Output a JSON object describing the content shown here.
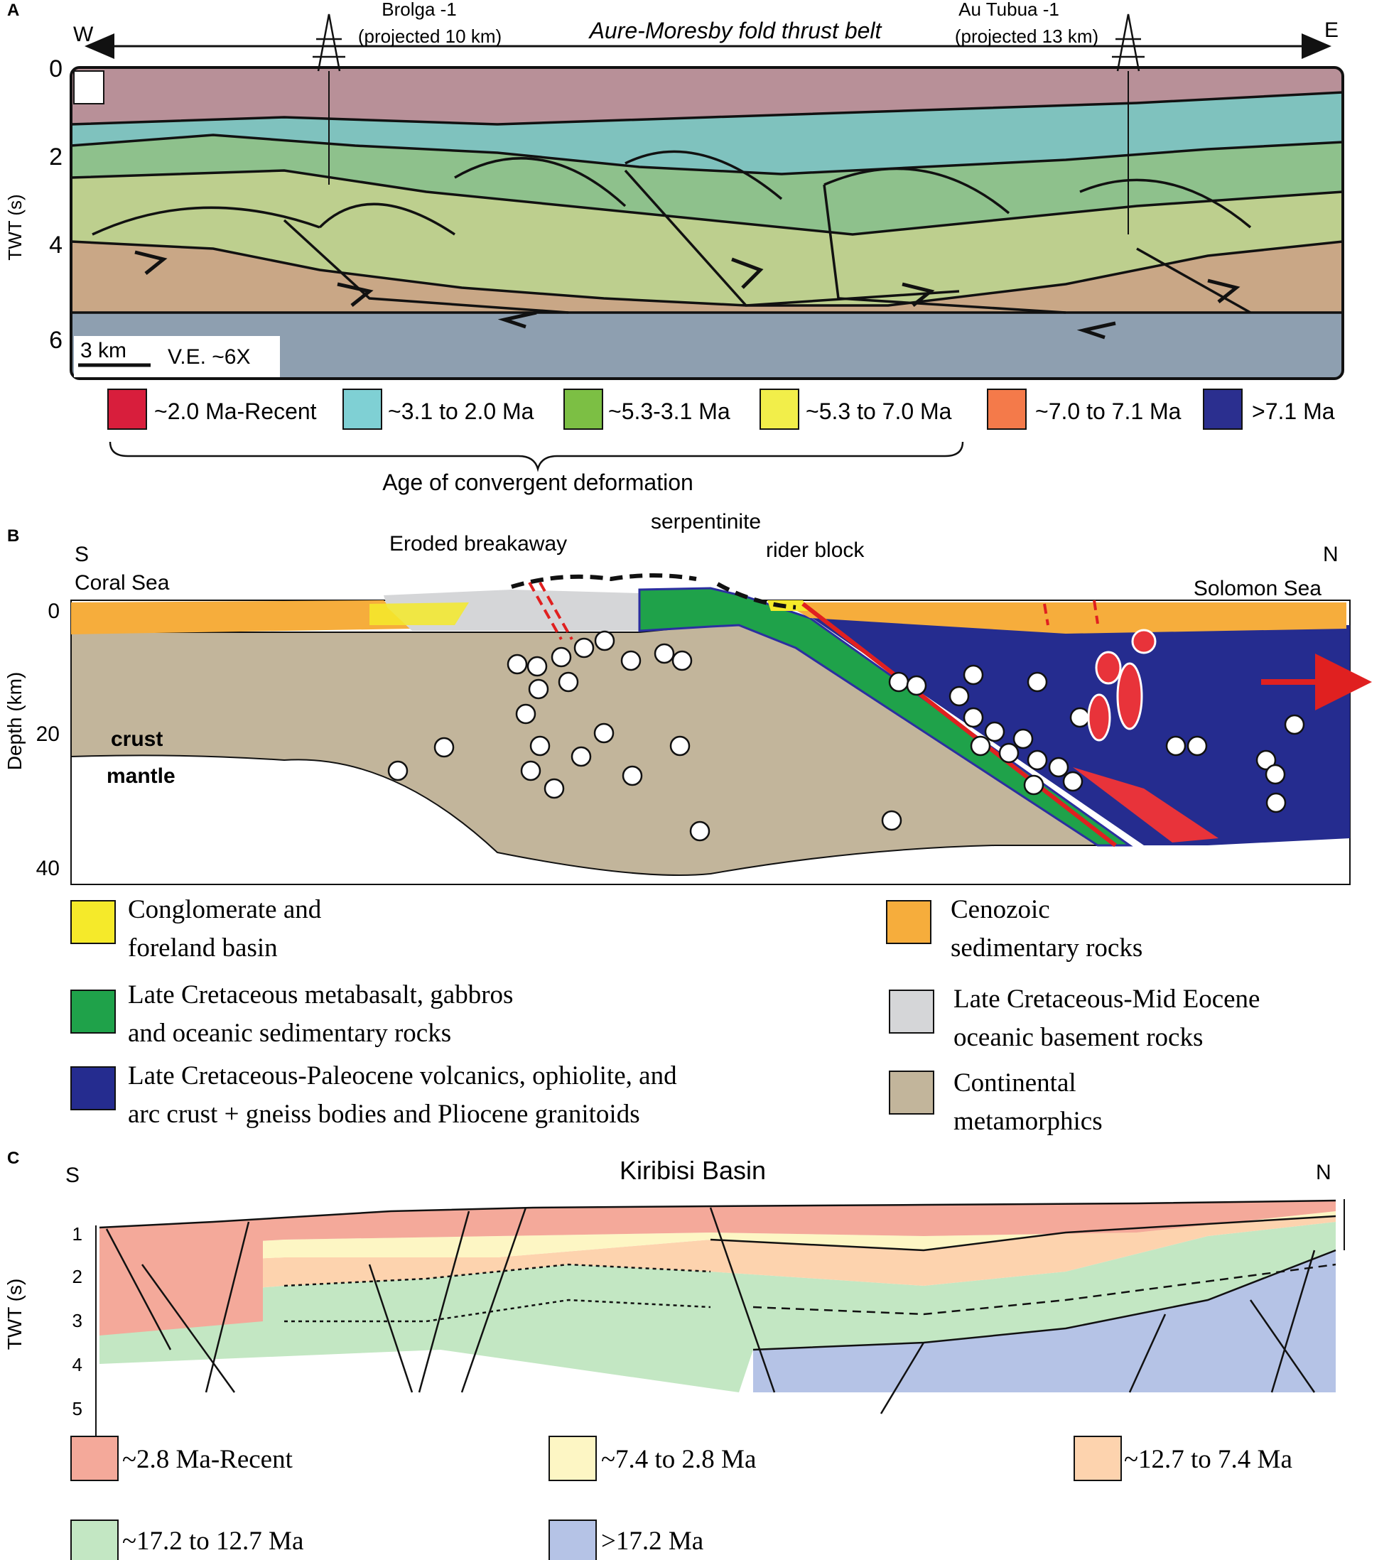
{
  "panel_a": {
    "letter": "A",
    "west": "W",
    "east": "E",
    "title": "Aure-Moresby fold thrust belt",
    "well_left": {
      "name": "Brolga -1",
      "note": "(projected 10 km)"
    },
    "well_right": {
      "name": "Au Tubua -1",
      "note": "(projected 13 km)"
    },
    "y_axis_label": "TWT (s)",
    "y_ticks": [
      "0",
      "2",
      "4",
      "6"
    ],
    "scale_bar": "3 km",
    "vertical_exaggeration": "V.E. ~6X",
    "legend": [
      {
        "label": "~2.0 Ma-Recent",
        "color": "#d81e3c"
      },
      {
        "label": "~3.1 to 2.0 Ma",
        "color": "#7fd0d4"
      },
      {
        "label": "~5.3-3.1 Ma",
        "color": "#7cbf44"
      },
      {
        "label": "~5.3 to 7.0 Ma",
        "color": "#f2ee4a"
      },
      {
        "label": "~7.0 to 7.1 Ma",
        "color": "#f47a4a"
      },
      {
        "label": ">7.1 Ma",
        "color": "#2b2f8f"
      }
    ],
    "bracket_caption": "Age of convergent deformation",
    "colors": {
      "recent": "#b89098",
      "cyan": "#7fc2be",
      "green": "#8ec18c",
      "olive": "#bdcf8e",
      "tan": "#c9a786",
      "grey": "#8e9fb0"
    }
  },
  "panel_b": {
    "letter": "B",
    "south": "S",
    "north": "N",
    "left_sea": "Coral Sea",
    "right_sea": "Solomon Sea",
    "label_breakaway": "Eroded breakaway",
    "label_serpentinite": "serpentinite",
    "label_rider": "rider block",
    "label_crust": "crust",
    "label_mantle": "mantle",
    "y_axis_label": "Depth (km)",
    "y_ticks": [
      "0",
      "20",
      "40"
    ],
    "legend": [
      {
        "label_line1": "Conglomerate and",
        "label_line2": "foreland basin",
        "color": "#f5ea2a"
      },
      {
        "label_line1": "Cenozoic",
        "label_line2": "sedimentary rocks",
        "color": "#f6ad3c"
      },
      {
        "label_line1": "Late Cretaceous metabasalt, gabbros",
        "label_line2": "and oceanic sedimentary rocks",
        "color": "#1fa24a"
      },
      {
        "label_line1": "Late Cretaceous-Mid Eocene",
        "label_line2": "oceanic basement rocks",
        "color": "#d5d6d8"
      },
      {
        "label_line1": "Late Cretaceous-Paleocene volcanics, ophiolite, and",
        "label_line2": "arc crust + gneiss bodies and Pliocene granitoids",
        "color": "#252c8f"
      },
      {
        "label_line1": "Continental",
        "label_line2": "metamorphics",
        "color": "#c2b59b"
      }
    ],
    "colors": {
      "orange": "#f6ad3c",
      "tan": "#c2b59b",
      "green": "#1fa24a",
      "grey": "#d5d6d8",
      "blue": "#252c8f",
      "red": "#e8333a"
    }
  },
  "panel_c": {
    "letter": "C",
    "south": "S",
    "north": "N",
    "title": "Kiribisi Basin",
    "y_axis_label": "TWT (s)",
    "y_ticks": [
      "1",
      "2",
      "3",
      "4",
      "5"
    ],
    "legend": [
      {
        "label": "~2.8 Ma-Recent",
        "color": "#f4a99a"
      },
      {
        "label": "~7.4 to 2.8 Ma",
        "color": "#fdf6c4"
      },
      {
        "label": "~12.7 to 7.4 Ma",
        "color": "#fdd3ae"
      },
      {
        "label": "~17.2 to 12.7 Ma",
        "color": "#c3e7c3"
      },
      {
        "label": ">17.2 Ma",
        "color": "#b5c3e6"
      }
    ]
  }
}
